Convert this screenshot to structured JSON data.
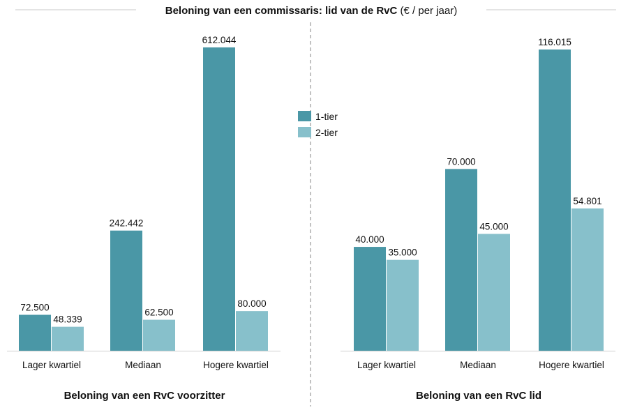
{
  "title": {
    "bold": "Beloning van een commissaris: lid van de RvC",
    "normal": " (€ / per jaar)"
  },
  "legend": [
    {
      "label": "1-tier",
      "color": "#4A97A6"
    },
    {
      "label": "2-tier",
      "color": "#87C0CB"
    }
  ],
  "chart_data": [
    {
      "type": "bar",
      "title": "Beloning van een RvC voorzitter",
      "categories": [
        "Lager kwartiel",
        "Mediaan",
        "Hogere kwartiel"
      ],
      "series": [
        {
          "name": "1-tier",
          "values": [
            72500,
            242442,
            612044
          ],
          "labels": [
            "72.500",
            "242.442",
            "612.044"
          ]
        },
        {
          "name": "2-tier",
          "values": [
            48339,
            62500,
            80000
          ],
          "labels": [
            "48.339",
            "62.500",
            "80.000"
          ]
        }
      ],
      "ylim": [
        0,
        612044
      ],
      "xlabel": "",
      "ylabel": ""
    },
    {
      "type": "bar",
      "title": "Beloning van een RvC lid",
      "categories": [
        "Lager kwartiel",
        "Mediaan",
        "Hogere kwartiel"
      ],
      "series": [
        {
          "name": "1-tier",
          "values": [
            40000,
            70000,
            116015
          ],
          "labels": [
            "40.000",
            "70.000",
            "116.015"
          ]
        },
        {
          "name": "2-tier",
          "values": [
            35000,
            45000,
            54801
          ],
          "labels": [
            "35.000",
            "45.000",
            "54.801"
          ]
        }
      ],
      "ylim": [
        0,
        116015
      ],
      "xlabel": "",
      "ylabel": ""
    }
  ]
}
